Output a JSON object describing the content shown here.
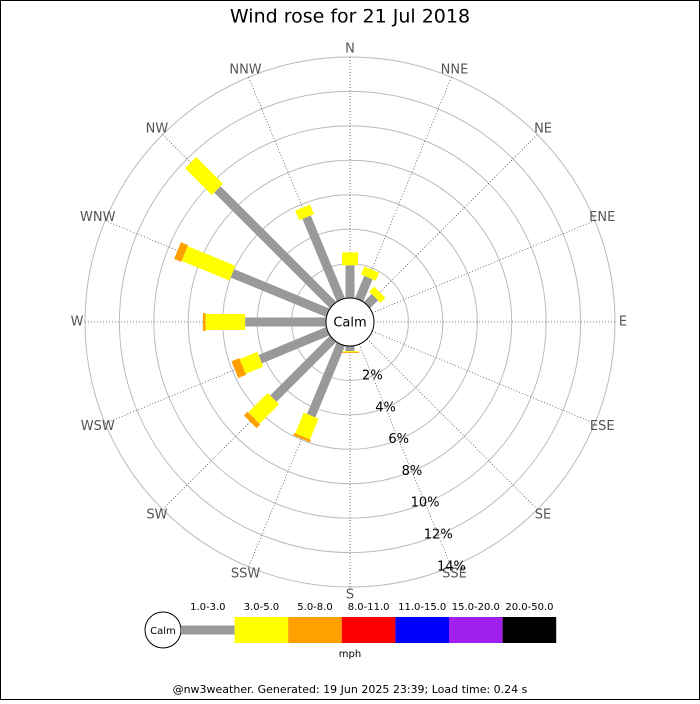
{
  "chart_data": {
    "type": "windrose",
    "title": "Wind rose for 21 Jul 2018",
    "categories": [
      "N",
      "NNE",
      "NE",
      "ENE",
      "E",
      "ESE",
      "SE",
      "SSE",
      "S",
      "SSW",
      "SW",
      "WSW",
      "W",
      "WNW",
      "NW",
      "NNW"
    ],
    "center_label": "Calm",
    "rlim": [
      0,
      14
    ],
    "rticks": [
      {
        "value": 2,
        "label": "2%"
      },
      {
        "value": 4,
        "label": "4%"
      },
      {
        "value": 6,
        "label": "6%"
      },
      {
        "value": 8,
        "label": "8%"
      },
      {
        "value": 10,
        "label": "10%"
      },
      {
        "value": 12,
        "label": "12%"
      },
      {
        "value": 14,
        "label": "14%"
      }
    ],
    "series": [
      {
        "name": "1.0-3.0",
        "color": "#999999",
        "values": [
          1.9,
          1.4,
          0.65,
          0,
          0,
          0,
          0,
          0,
          0.3,
          4.5,
          4.9,
          4.25,
          4.7,
          6.0,
          9.5,
          5.2
        ]
      },
      {
        "name": "3.0-5.0",
        "color": "#ffff00",
        "values": [
          0.75,
          0.5,
          0.4,
          0,
          0,
          0,
          0,
          0,
          0.05,
          1.3,
          1.6,
          1.1,
          2.3,
          3.0,
          2.2,
          0.6
        ]
      },
      {
        "name": "5.0-8.0",
        "color": "#ffa000",
        "values": [
          0,
          0,
          0,
          0,
          0,
          0,
          0,
          0,
          0.05,
          0.15,
          0.3,
          0.5,
          0.15,
          0.45,
          0,
          0
        ]
      },
      {
        "name": "8.0-11.0",
        "color": "#ff0000",
        "values": [
          0,
          0,
          0,
          0,
          0,
          0,
          0,
          0,
          0,
          0,
          0,
          0,
          0,
          0,
          0,
          0
        ]
      },
      {
        "name": "11.0-15.0",
        "color": "#0000ff",
        "values": [
          0,
          0,
          0,
          0,
          0,
          0,
          0,
          0,
          0,
          0,
          0,
          0,
          0,
          0,
          0,
          0
        ]
      },
      {
        "name": "15.0-20.0",
        "color": "#a020f0",
        "values": [
          0,
          0,
          0,
          0,
          0,
          0,
          0,
          0,
          0,
          0,
          0,
          0,
          0,
          0,
          0,
          0
        ]
      },
      {
        "name": "20.0-50.0",
        "color": "#000000",
        "values": [
          0,
          0,
          0,
          0,
          0,
          0,
          0,
          0,
          0,
          0,
          0,
          0,
          0,
          0,
          0,
          0
        ]
      }
    ],
    "legend_unit": "mph",
    "footer": "@nw3weather. Generated: 19 Jun 2025 23:39; Load time: 0.24 s"
  }
}
